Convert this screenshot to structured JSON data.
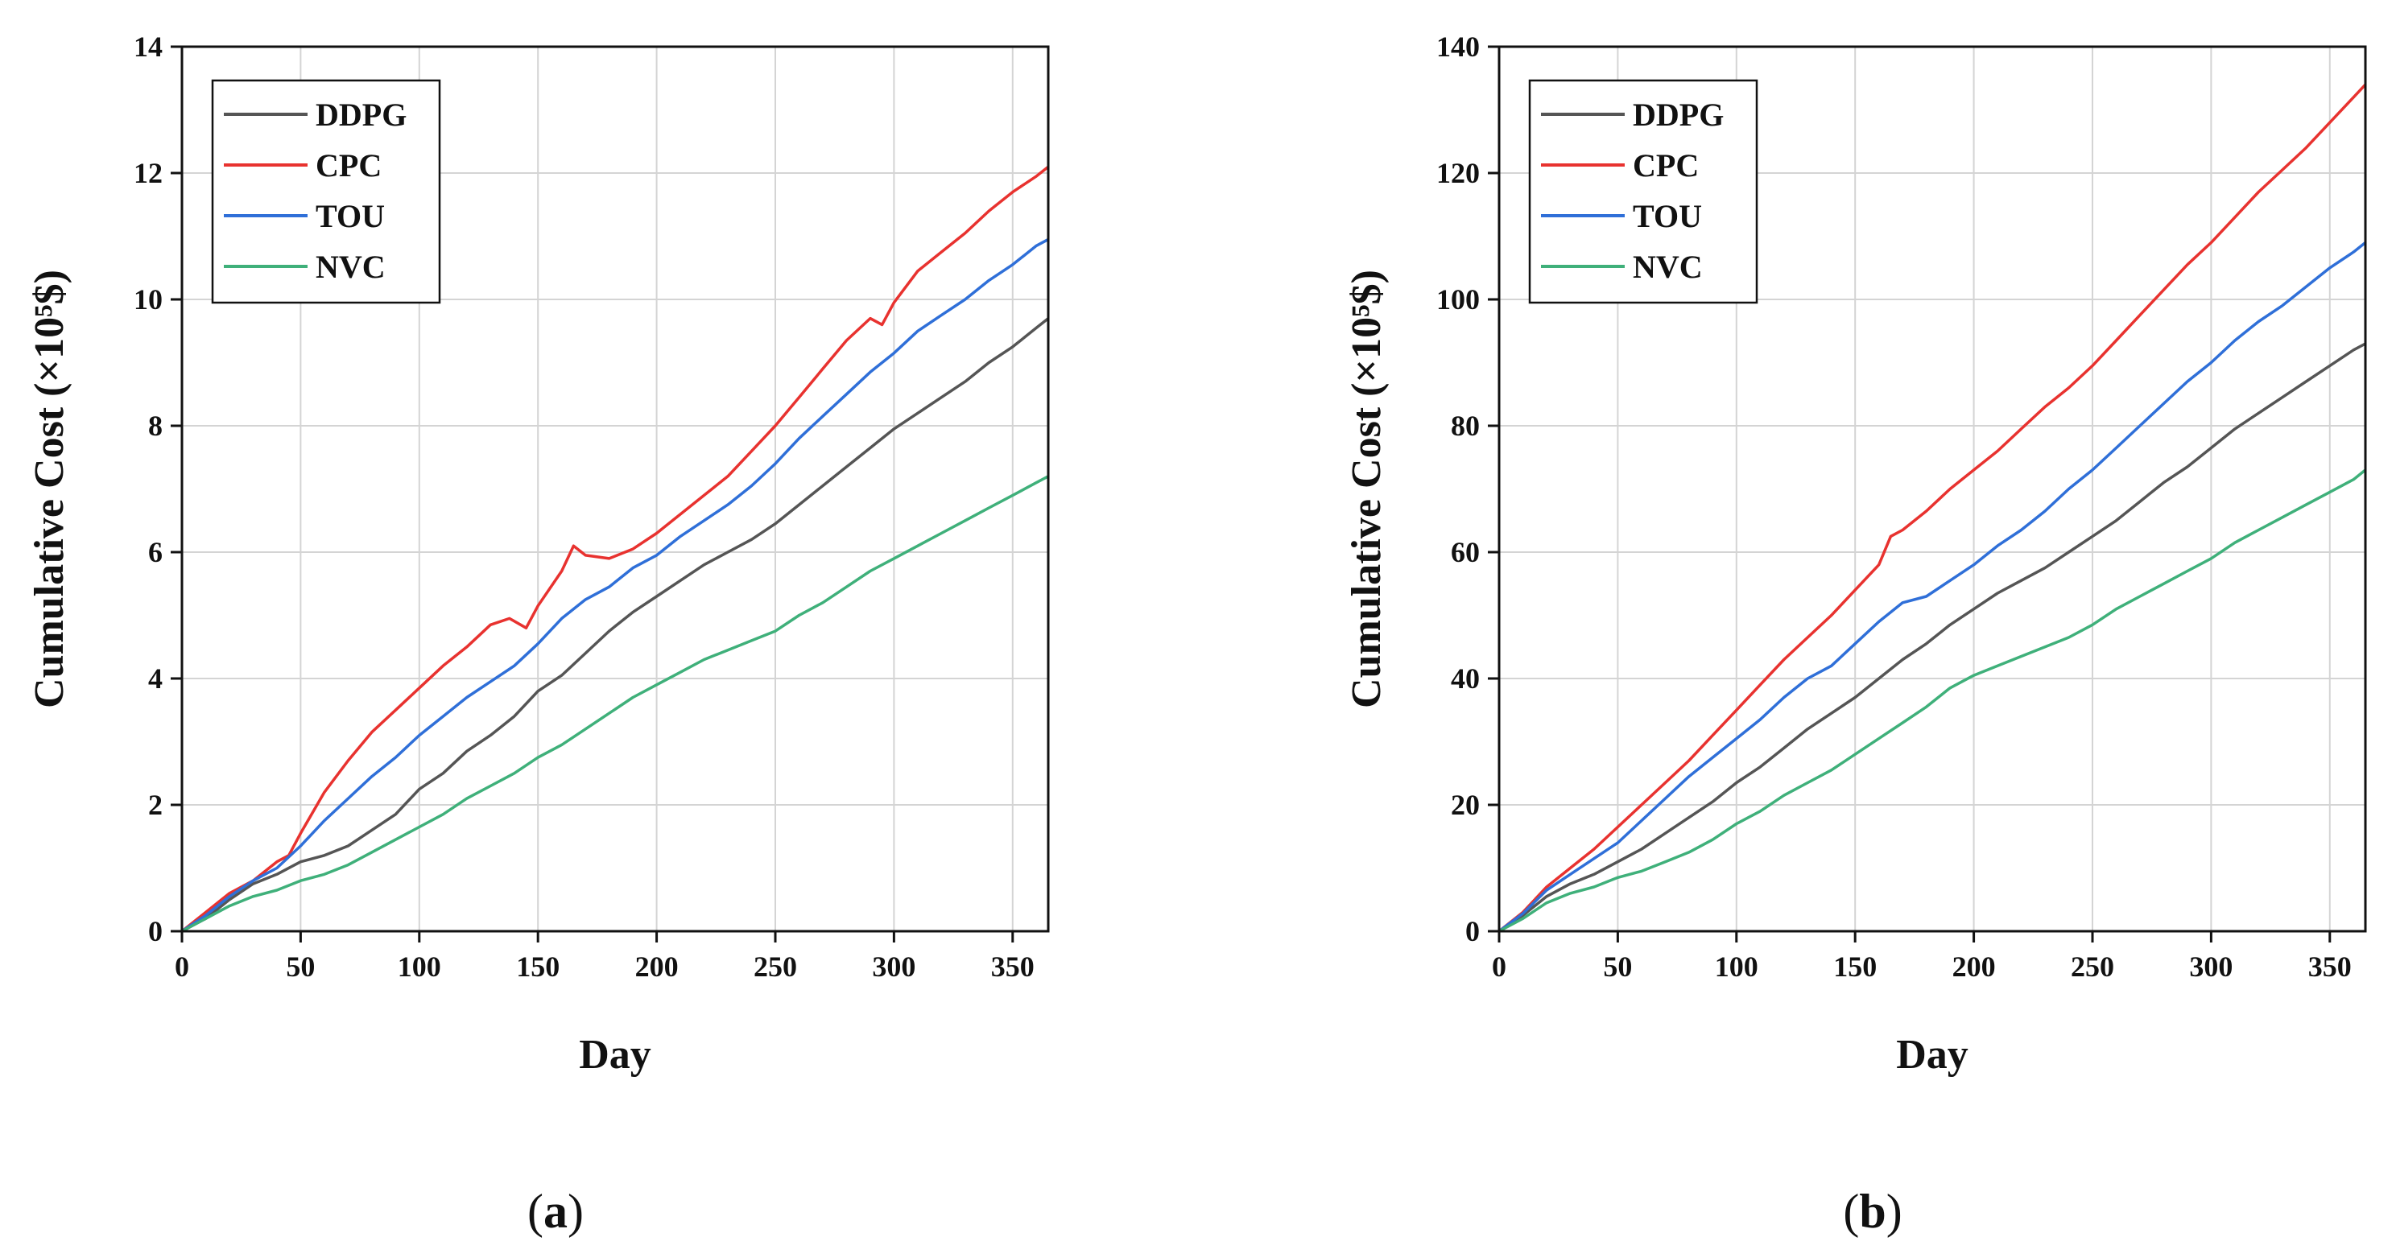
{
  "chart_data": [
    {
      "type": "line",
      "panel_label": "(a)",
      "panel_letter": "a",
      "xlabel": "Day",
      "ylabel": "Cumulative Cost (×10⁵$)",
      "xlim": [
        0,
        365
      ],
      "ylim": [
        0,
        14
      ],
      "xticks": [
        0,
        50,
        100,
        150,
        200,
        250,
        300,
        350
      ],
      "yticks": [
        0,
        2,
        4,
        6,
        8,
        10,
        12,
        14
      ],
      "grid": true,
      "legend_position": "top-left",
      "series": [
        {
          "name": "DDPG",
          "color": "#555555",
          "x": [
            0,
            10,
            20,
            30,
            40,
            50,
            60,
            70,
            80,
            90,
            100,
            110,
            120,
            130,
            140,
            150,
            160,
            170,
            180,
            190,
            200,
            210,
            220,
            230,
            240,
            250,
            260,
            270,
            280,
            290,
            300,
            310,
            320,
            330,
            340,
            350,
            360,
            365
          ],
          "y": [
            0,
            0.2,
            0.5,
            0.75,
            0.9,
            1.1,
            1.2,
            1.35,
            1.6,
            1.85,
            2.25,
            2.5,
            2.85,
            3.1,
            3.4,
            3.8,
            4.05,
            4.4,
            4.75,
            5.05,
            5.3,
            5.55,
            5.8,
            6.0,
            6.2,
            6.45,
            6.75,
            7.05,
            7.35,
            7.65,
            7.95,
            8.2,
            8.45,
            8.7,
            9.0,
            9.25,
            9.55,
            9.7
          ]
        },
        {
          "name": "CPC",
          "color": "#e8322f",
          "x": [
            0,
            10,
            20,
            30,
            40,
            45,
            50,
            60,
            70,
            80,
            90,
            100,
            110,
            120,
            130,
            138,
            145,
            150,
            160,
            165,
            170,
            180,
            190,
            200,
            210,
            220,
            230,
            240,
            250,
            260,
            270,
            280,
            290,
            295,
            300,
            310,
            320,
            330,
            340,
            350,
            360,
            365
          ],
          "y": [
            0,
            0.3,
            0.6,
            0.8,
            1.1,
            1.2,
            1.55,
            2.2,
            2.7,
            3.15,
            3.5,
            3.85,
            4.2,
            4.5,
            4.85,
            4.95,
            4.8,
            5.15,
            5.7,
            6.1,
            5.95,
            5.9,
            6.05,
            6.3,
            6.6,
            6.9,
            7.2,
            7.6,
            8.0,
            8.45,
            8.9,
            9.35,
            9.7,
            9.6,
            9.95,
            10.45,
            10.75,
            11.05,
            11.4,
            11.7,
            11.95,
            12.1
          ]
        },
        {
          "name": "TOU",
          "color": "#2f6fd8",
          "x": [
            0,
            10,
            20,
            30,
            40,
            50,
            60,
            70,
            80,
            90,
            100,
            110,
            120,
            130,
            140,
            150,
            160,
            170,
            180,
            190,
            200,
            210,
            220,
            230,
            240,
            250,
            260,
            270,
            280,
            290,
            300,
            310,
            320,
            330,
            340,
            350,
            360,
            365
          ],
          "y": [
            0,
            0.25,
            0.55,
            0.8,
            1.0,
            1.35,
            1.75,
            2.1,
            2.45,
            2.75,
            3.1,
            3.4,
            3.7,
            3.95,
            4.2,
            4.55,
            4.95,
            5.25,
            5.45,
            5.75,
            5.95,
            6.25,
            6.5,
            6.75,
            7.05,
            7.4,
            7.8,
            8.15,
            8.5,
            8.85,
            9.15,
            9.5,
            9.75,
            10.0,
            10.3,
            10.55,
            10.85,
            10.95
          ]
        },
        {
          "name": "NVC",
          "color": "#3fb07a",
          "x": [
            0,
            10,
            20,
            30,
            40,
            50,
            60,
            70,
            80,
            90,
            100,
            110,
            120,
            130,
            140,
            150,
            160,
            170,
            180,
            190,
            200,
            210,
            220,
            230,
            240,
            250,
            260,
            270,
            280,
            290,
            300,
            310,
            320,
            330,
            340,
            350,
            360,
            365
          ],
          "y": [
            0,
            0.2,
            0.4,
            0.55,
            0.65,
            0.8,
            0.9,
            1.05,
            1.25,
            1.45,
            1.65,
            1.85,
            2.1,
            2.3,
            2.5,
            2.75,
            2.95,
            3.2,
            3.45,
            3.7,
            3.9,
            4.1,
            4.3,
            4.45,
            4.6,
            4.75,
            5.0,
            5.2,
            5.45,
            5.7,
            5.9,
            6.1,
            6.3,
            6.5,
            6.7,
            6.9,
            7.1,
            7.2
          ]
        }
      ]
    },
    {
      "type": "line",
      "panel_label": "(b)",
      "panel_letter": "b",
      "xlabel": "Day",
      "ylabel": "Cumulative Cost (×10⁵$)",
      "xlim": [
        0,
        365
      ],
      "ylim": [
        0,
        140
      ],
      "xticks": [
        0,
        50,
        100,
        150,
        200,
        250,
        300,
        350
      ],
      "yticks": [
        0,
        20,
        40,
        60,
        80,
        100,
        120,
        140
      ],
      "grid": true,
      "legend_position": "top-left",
      "series": [
        {
          "name": "DDPG",
          "color": "#555555",
          "x": [
            0,
            10,
            20,
            30,
            40,
            50,
            60,
            70,
            80,
            90,
            100,
            110,
            120,
            130,
            140,
            150,
            160,
            170,
            180,
            190,
            200,
            210,
            220,
            230,
            240,
            250,
            260,
            270,
            280,
            290,
            300,
            310,
            320,
            330,
            340,
            350,
            360,
            365
          ],
          "y": [
            0,
            2.5,
            5.5,
            7.5,
            9,
            11,
            13,
            15.5,
            18,
            20.5,
            23.5,
            26,
            29,
            32,
            34.5,
            37,
            40,
            43,
            45.5,
            48.5,
            51,
            53.5,
            55.5,
            57.5,
            60,
            62.5,
            65,
            68,
            71,
            73.5,
            76.5,
            79.5,
            82,
            84.5,
            87,
            89.5,
            92,
            93
          ]
        },
        {
          "name": "CPC",
          "color": "#e8322f",
          "x": [
            0,
            10,
            20,
            30,
            40,
            50,
            60,
            70,
            80,
            90,
            100,
            110,
            120,
            130,
            140,
            150,
            160,
            165,
            170,
            180,
            190,
            200,
            210,
            220,
            230,
            240,
            250,
            260,
            270,
            280,
            290,
            300,
            310,
            320,
            330,
            340,
            350,
            360,
            365
          ],
          "y": [
            0,
            3,
            7,
            10,
            13,
            16.5,
            20,
            23.5,
            27,
            31,
            35,
            39,
            43,
            46.5,
            50,
            54,
            58,
            62.5,
            63.5,
            66.5,
            70,
            73,
            76,
            79.5,
            83,
            86,
            89.5,
            93.5,
            97.5,
            101.5,
            105.5,
            109,
            113,
            117,
            120.5,
            124,
            128,
            132,
            134
          ]
        },
        {
          "name": "TOU",
          "color": "#2f6fd8",
          "x": [
            0,
            10,
            20,
            30,
            40,
            50,
            60,
            70,
            80,
            90,
            100,
            110,
            120,
            130,
            140,
            150,
            160,
            170,
            180,
            190,
            200,
            210,
            220,
            230,
            240,
            250,
            260,
            270,
            280,
            290,
            300,
            310,
            320,
            330,
            340,
            350,
            360,
            365
          ],
          "y": [
            0,
            2.8,
            6.5,
            9,
            11.5,
            14,
            17.5,
            21,
            24.5,
            27.5,
            30.5,
            33.5,
            37,
            40,
            42,
            45.5,
            49,
            52,
            53,
            55.5,
            58,
            61,
            63.5,
            66.5,
            70,
            73,
            76.5,
            80,
            83.5,
            87,
            90,
            93.5,
            96.5,
            99,
            102,
            105,
            107.5,
            109
          ]
        },
        {
          "name": "NVC",
          "color": "#3fb07a",
          "x": [
            0,
            10,
            20,
            30,
            40,
            50,
            60,
            70,
            80,
            90,
            100,
            110,
            120,
            130,
            140,
            150,
            160,
            170,
            180,
            190,
            200,
            210,
            220,
            230,
            240,
            250,
            260,
            270,
            280,
            290,
            300,
            310,
            320,
            330,
            340,
            350,
            360,
            365
          ],
          "y": [
            0,
            2,
            4.5,
            6,
            7,
            8.5,
            9.5,
            11,
            12.5,
            14.5,
            17,
            19,
            21.5,
            23.5,
            25.5,
            28,
            30.5,
            33,
            35.5,
            38.5,
            40.5,
            42,
            43.5,
            45,
            46.5,
            48.5,
            51,
            53,
            55,
            57,
            59,
            61.5,
            63.5,
            65.5,
            67.5,
            69.5,
            71.5,
            73
          ]
        }
      ]
    }
  ]
}
